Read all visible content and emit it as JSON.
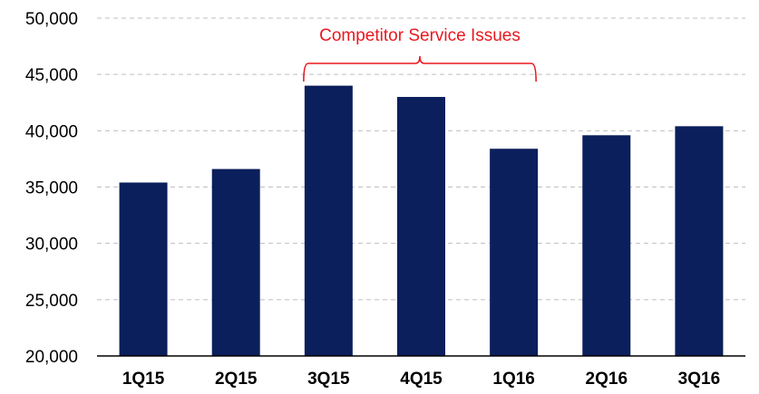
{
  "chart_data": {
    "type": "bar",
    "categories": [
      "1Q15",
      "2Q15",
      "3Q15",
      "4Q15",
      "1Q16",
      "2Q16",
      "3Q16"
    ],
    "values": [
      35400,
      36600,
      44000,
      43000,
      38400,
      39600,
      40400
    ],
    "ylim": [
      20000,
      50000
    ],
    "yticks": [
      "20,000",
      "25,000",
      "30,000",
      "35,000",
      "40,000",
      "45,000",
      "50,000"
    ],
    "ytick_values": [
      20000,
      25000,
      30000,
      35000,
      40000,
      45000,
      50000
    ],
    "grid": true,
    "bar_color": "#0b1f5c",
    "annotations": [
      {
        "text": "Competitor Service Issues",
        "span": [
          "3Q15",
          "1Q16"
        ],
        "color": "#e8191f"
      }
    ]
  }
}
